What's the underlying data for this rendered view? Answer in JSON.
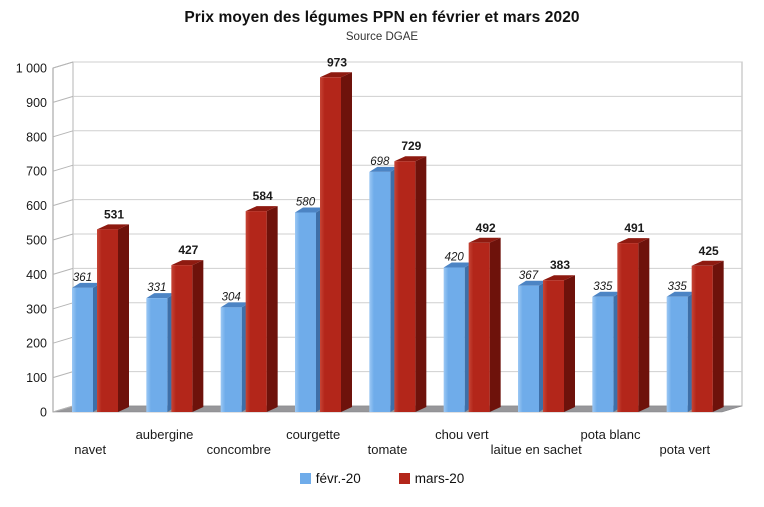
{
  "title": "Prix moyen des légumes PPN en février et mars 2020",
  "subtitle": "Source DGAE",
  "chart_data": {
    "type": "bar",
    "style_3d": true,
    "title": "Prix moyen des légumes PPN en février et mars 2020",
    "subtitle": "Source DGAE",
    "categories": [
      "navet",
      "aubergine",
      "concombre",
      "courgette",
      "tomate",
      "chou vert",
      "laitue en sachet",
      "pota blanc",
      "pota vert"
    ],
    "series": [
      {
        "name": "févr.-20",
        "values": [
          361,
          331,
          304,
          580,
          698,
          420,
          367,
          335,
          335
        ],
        "color": "#6FACEA",
        "side_color": "#3E6FA8",
        "top_color": "#4C84C4",
        "highlight_color": "#9CC8F4",
        "label_style": "italic"
      },
      {
        "name": "mars-20",
        "values": [
          531,
          427,
          584,
          973,
          729,
          492,
          383,
          491,
          425
        ],
        "color": "#B3261A",
        "side_color": "#6E120B",
        "top_color": "#8E1A10",
        "highlight_color": "#C64536",
        "label_style": "bold"
      }
    ],
    "ylim": [
      0,
      1000
    ],
    "ytick_step": 100,
    "ytick_labels": [
      "0",
      "100",
      "200",
      "300",
      "400",
      "500",
      "600",
      "700",
      "800",
      "900",
      "1 000"
    ],
    "grid": true,
    "legend_position": "bottom",
    "wall_color": "#ffffff",
    "wall_border_color": "#b5b5b5",
    "gridline_color": "#cfcfcf",
    "floor_color": "#97979a",
    "axis_color": "#9a9a9a",
    "label_color": "#1a1a1a"
  },
  "legend": {
    "items": [
      {
        "label": "févr.-20",
        "color": "#6FACEA"
      },
      {
        "label": "mars-20",
        "color": "#B3261A"
      }
    ]
  }
}
